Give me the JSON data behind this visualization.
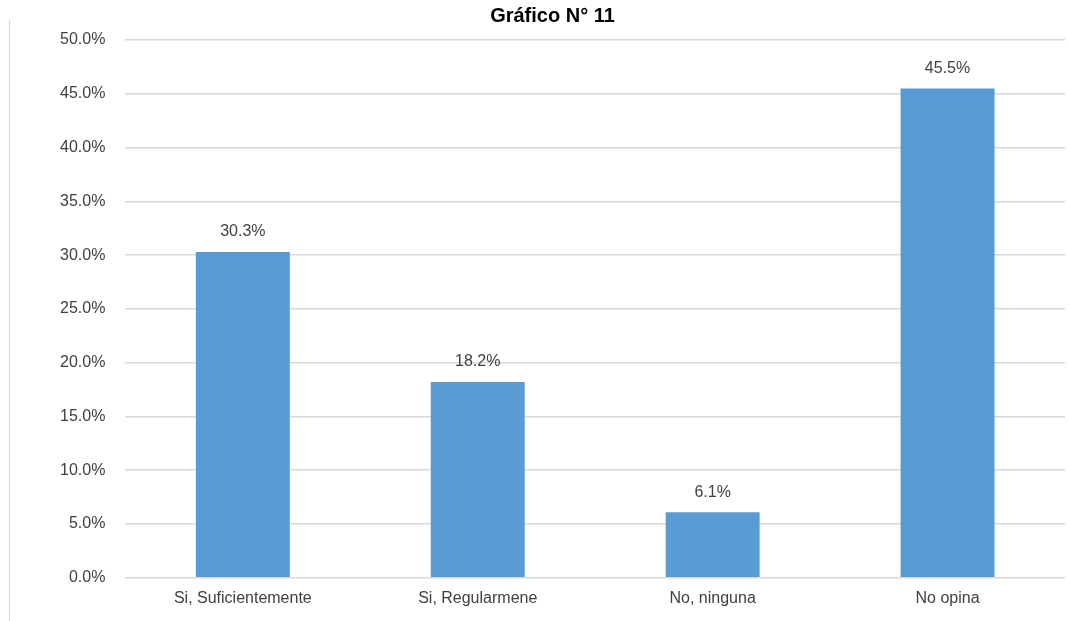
{
  "chart_data": {
    "type": "bar",
    "title": "Gráfico N° 11",
    "categories": [
      "Si, Suficientemente",
      "Si, Regularmene",
      "No, ninguna",
      "No opina"
    ],
    "values": [
      30.3,
      18.2,
      6.1,
      45.5
    ],
    "color": "#5b9bd5",
    "value_labels": [
      "30.3%",
      "18.2%",
      "6.1%",
      "45.5%"
    ],
    "ylim": [
      0,
      50
    ],
    "yticks": [
      {
        "value": 0,
        "label": "0.0%"
      },
      {
        "value": 5,
        "label": "5.0%"
      },
      {
        "value": 10,
        "label": "10.0%"
      },
      {
        "value": 15,
        "label": "15.0%"
      },
      {
        "value": 20,
        "label": "20.0%"
      },
      {
        "value": 25,
        "label": "25.0%"
      },
      {
        "value": 30,
        "label": "30.0%"
      },
      {
        "value": 35,
        "label": "35.0%"
      },
      {
        "value": 40,
        "label": "40.0%"
      },
      {
        "value": 45,
        "label": "45.0%"
      },
      {
        "value": 50,
        "label": "50.0%"
      }
    ],
    "grid": "y",
    "legend": false
  }
}
